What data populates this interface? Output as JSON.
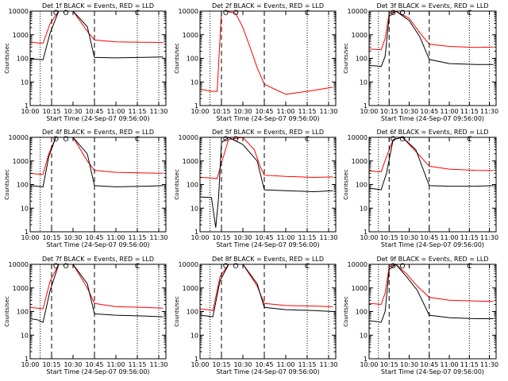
{
  "figure": {
    "background": "#ffffff",
    "axis_color": "#000000",
    "events_color": "#000000",
    "lld_color": "#ff0000"
  },
  "chart_data": [
    {
      "type": "line",
      "title": "Det 1f BLACK = Events, RED = LLD",
      "xlabel": "Start Time (24-Sep-07 09:56:00)",
      "ylabel": "Counts/sec",
      "xlim": [
        "10:00",
        "11:35"
      ],
      "ylim": [
        1,
        10000
      ],
      "yscale": "log",
      "x_ticks": [
        "10:00",
        "10:15",
        "10:30",
        "10:45",
        "11:00",
        "11:15",
        "11:30"
      ],
      "y_ticks": [
        "1",
        "10",
        "100",
        "1000",
        "10000"
      ],
      "dotted_vlines": [
        "10:07",
        "11:15",
        "11:30"
      ],
      "dashed_vlines": [
        "10:15",
        "10:45"
      ],
      "annotations": [
        "O",
        "O",
        "C"
      ],
      "series": [
        {
          "color": "#ff0000",
          "x": [
            "10:00",
            "10:06",
            "10:09",
            "10:14",
            "10:20",
            "10:30",
            "10:40",
            "10:45",
            "11:00",
            "11:20",
            "11:33"
          ],
          "values": [
            480,
            450,
            440,
            3000,
            10000,
            10000,
            1400,
            600,
            500,
            480,
            470
          ]
        },
        {
          "color": "#000000",
          "x": [
            "10:00",
            "10:06",
            "10:09",
            "10:14",
            "10:20",
            "10:30",
            "10:40",
            "10:45",
            "11:00",
            "11:20",
            "11:33"
          ],
          "values": [
            95,
            90,
            88,
            1200,
            10000,
            10000,
            2200,
            110,
            105,
            110,
            115
          ]
        }
      ]
    },
    {
      "type": "line",
      "title": "Det 2f BLACK = Events, RED = LLD",
      "xlabel": "Start Time (24-Sep-07 09:56:00)",
      "ylabel": "Counts/sec",
      "xlim": [
        "10:00",
        "11:35"
      ],
      "ylim": [
        1,
        10000
      ],
      "yscale": "log",
      "x_ticks": [
        "10:00",
        "10:15",
        "10:30",
        "10:45",
        "11:00",
        "11:15",
        "11:30"
      ],
      "y_ticks": [
        "1",
        "10",
        "100",
        "1000",
        "10000"
      ],
      "dotted_vlines": [
        "10:07",
        "11:15",
        "11:30"
      ],
      "dashed_vlines": [
        "10:15",
        "10:45"
      ],
      "annotations": [
        "O",
        "O",
        "C"
      ],
      "series": [
        {
          "color": "#ff0000",
          "x": [
            "10:00",
            "10:08",
            "10:12",
            "10:15",
            "10:18",
            "10:25",
            "10:30",
            "10:35",
            "10:40",
            "10:45",
            "11:00",
            "11:15",
            "11:33"
          ],
          "values": [
            5,
            4,
            4,
            10000,
            10000,
            8000,
            2000,
            300,
            40,
            8,
            3,
            4,
            6
          ]
        },
        {
          "color": "#000000",
          "x": [
            "10:00",
            "11:33"
          ],
          "values": [
            1,
            1
          ]
        }
      ]
    },
    {
      "type": "line",
      "title": "Det 3f BLACK = Events, RED = LLD",
      "xlabel": "Start Time (24-Sep-07 09:56:00)",
      "ylabel": "Counts/sec",
      "xlim": [
        "10:00",
        "11:35"
      ],
      "ylim": [
        1,
        10000
      ],
      "yscale": "log",
      "x_ticks": [
        "10:00",
        "10:15",
        "10:30",
        "10:45",
        "11:00",
        "11:15",
        "11:30"
      ],
      "y_ticks": [
        "1",
        "10",
        "100",
        "1000",
        "10000"
      ],
      "dotted_vlines": [
        "10:07",
        "11:15",
        "11:30"
      ],
      "dashed_vlines": [
        "10:15",
        "10:45"
      ],
      "annotations": [
        "O",
        "O",
        "C"
      ],
      "series": [
        {
          "color": "#ff0000",
          "x": [
            "10:00",
            "10:05",
            "10:09",
            "10:12",
            "10:15",
            "10:20",
            "10:30",
            "10:38",
            "10:45",
            "11:00",
            "11:20",
            "11:33"
          ],
          "values": [
            250,
            240,
            230,
            700,
            8000,
            10000,
            5000,
            1200,
            400,
            320,
            290,
            300
          ]
        },
        {
          "color": "#000000",
          "x": [
            "10:00",
            "10:05",
            "10:09",
            "10:12",
            "10:15",
            "10:20",
            "10:30",
            "10:38",
            "10:45",
            "11:00",
            "11:20",
            "11:33"
          ],
          "values": [
            50,
            48,
            45,
            120,
            6000,
            10000,
            4000,
            800,
            90,
            60,
            55,
            55
          ]
        }
      ]
    },
    {
      "type": "line",
      "title": "Det 4f BLACK = Events, RED = LLD",
      "xlabel": "Start Time (24-Sep-07 09:56:00)",
      "ylabel": "Counts/sec",
      "xlim": [
        "10:00",
        "11:35"
      ],
      "ylim": [
        1,
        10000
      ],
      "yscale": "log",
      "x_ticks": [
        "10:00",
        "10:15",
        "10:30",
        "10:45",
        "11:00",
        "11:15",
        "11:30"
      ],
      "y_ticks": [
        "1",
        "10",
        "100",
        "1000",
        "10000"
      ],
      "dotted_vlines": [
        "10:07",
        "11:15",
        "11:30"
      ],
      "dashed_vlines": [
        "10:15",
        "10:45"
      ],
      "annotations": [
        "O",
        "O",
        "C"
      ],
      "series": [
        {
          "color": "#ff0000",
          "x": [
            "10:00",
            "10:05",
            "10:09",
            "10:13",
            "10:18",
            "10:30",
            "10:40",
            "10:45",
            "11:00",
            "11:20",
            "11:33"
          ],
          "values": [
            300,
            280,
            270,
            2000,
            10000,
            10000,
            1000,
            400,
            330,
            310,
            300
          ]
        },
        {
          "color": "#000000",
          "x": [
            "10:00",
            "10:05",
            "10:09",
            "10:13",
            "10:18",
            "10:30",
            "10:40",
            "10:45",
            "11:00",
            "11:20",
            "11:33"
          ],
          "values": [
            90,
            85,
            80,
            1500,
            10000,
            10000,
            2000,
            90,
            80,
            85,
            90
          ]
        }
      ]
    },
    {
      "type": "line",
      "title": "Det 5f BLACK = Events, RED = LLD",
      "xlabel": "Start Time (24-Sep-07 09:56:00)",
      "ylabel": "Counts/sec",
      "xlim": [
        "10:00",
        "11:35"
      ],
      "ylim": [
        1,
        10000
      ],
      "yscale": "log",
      "x_ticks": [
        "10:00",
        "10:15",
        "10:30",
        "10:45",
        "11:00",
        "11:15",
        "11:30"
      ],
      "y_ticks": [
        "1",
        "10",
        "100",
        "1000",
        "10000"
      ],
      "dotted_vlines": [
        "10:07",
        "11:15",
        "11:30"
      ],
      "dashed_vlines": [
        "10:15",
        "10:45"
      ],
      "annotations": [
        "O",
        "O",
        "C"
      ],
      "series": [
        {
          "color": "#ff0000",
          "x": [
            "10:00",
            "10:08",
            "10:12",
            "10:15",
            "10:20",
            "10:30",
            "10:38",
            "10:42",
            "10:45",
            "11:00",
            "11:20",
            "11:33"
          ],
          "values": [
            200,
            190,
            180,
            800,
            8000,
            10000,
            3000,
            600,
            250,
            220,
            200,
            210
          ]
        },
        {
          "color": "#000000",
          "x": [
            "10:00",
            "10:08",
            "10:11",
            "10:13",
            "10:15",
            "10:20",
            "10:30",
            "10:40",
            "10:45",
            "11:00",
            "11:20",
            "11:33"
          ],
          "values": [
            30,
            28,
            1.5,
            28,
            6000,
            10000,
            5000,
            1000,
            60,
            55,
            50,
            55
          ]
        }
      ]
    },
    {
      "type": "line",
      "title": "Det 6f BLACK = Events, RED = LLD",
      "xlabel": "Start Time (24-Sep-07 09:56:00)",
      "ylabel": "Counts/sec",
      "xlim": [
        "10:00",
        "11:35"
      ],
      "ylim": [
        1,
        10000
      ],
      "yscale": "log",
      "x_ticks": [
        "10:00",
        "10:15",
        "10:30",
        "10:45",
        "11:00",
        "11:15",
        "11:30"
      ],
      "y_ticks": [
        "1",
        "10",
        "100",
        "1000",
        "10000"
      ],
      "dotted_vlines": [
        "10:07",
        "11:15",
        "11:30"
      ],
      "dashed_vlines": [
        "10:15",
        "10:45"
      ],
      "annotations": [
        "O",
        "O",
        "C"
      ],
      "series": [
        {
          "color": "#ff0000",
          "x": [
            "10:00",
            "10:05",
            "10:09",
            "10:13",
            "10:18",
            "10:25",
            "10:35",
            "10:45",
            "11:00",
            "11:20",
            "11:33"
          ],
          "values": [
            380,
            360,
            350,
            1500,
            8000,
            10000,
            2500,
            600,
            450,
            400,
            390
          ]
        },
        {
          "color": "#000000",
          "x": [
            "10:00",
            "10:05",
            "10:09",
            "10:13",
            "10:18",
            "10:25",
            "10:35",
            "10:45",
            "11:00",
            "11:20",
            "11:33"
          ],
          "values": [
            70,
            65,
            60,
            300,
            8000,
            10000,
            3000,
            90,
            85,
            85,
            90
          ]
        }
      ]
    },
    {
      "type": "line",
      "title": "Det 7f BLACK = Events, RED = LLD",
      "xlabel": "Start Time (24-Sep-07 09:56:00)",
      "ylabel": "Counts/sec",
      "xlim": [
        "10:00",
        "11:35"
      ],
      "ylim": [
        1,
        10000
      ],
      "yscale": "log",
      "x_ticks": [
        "10:00",
        "10:15",
        "10:30",
        "10:45",
        "11:00",
        "11:15",
        "11:30"
      ],
      "y_ticks": [
        "1",
        "10",
        "100",
        "1000",
        "10000"
      ],
      "dotted_vlines": [
        "10:07",
        "11:15",
        "11:30"
      ],
      "dashed_vlines": [
        "10:15",
        "10:45"
      ],
      "annotations": [
        "O",
        "O",
        "C"
      ],
      "series": [
        {
          "color": "#ff0000",
          "x": [
            "10:00",
            "10:05",
            "10:09",
            "10:14",
            "10:20",
            "10:30",
            "10:40",
            "10:45",
            "11:00",
            "11:20",
            "11:33"
          ],
          "values": [
            150,
            140,
            130,
            2000,
            10000,
            10000,
            1000,
            220,
            160,
            150,
            140
          ]
        },
        {
          "color": "#000000",
          "x": [
            "10:00",
            "10:05",
            "10:09",
            "10:14",
            "10:20",
            "10:30",
            "10:40",
            "10:45",
            "11:00",
            "11:20",
            "11:33"
          ],
          "values": [
            50,
            45,
            35,
            800,
            10000,
            10000,
            1500,
            80,
            70,
            65,
            60
          ]
        }
      ]
    },
    {
      "type": "line",
      "title": "Det 8f BLACK = Events, RED = LLD",
      "xlabel": "Start Time (24-Sep-07 09:56:00)",
      "ylabel": "Counts/sec",
      "xlim": [
        "10:00",
        "11:35"
      ],
      "ylim": [
        1,
        10000
      ],
      "yscale": "log",
      "x_ticks": [
        "10:00",
        "10:15",
        "10:30",
        "10:45",
        "11:00",
        "11:15",
        "11:30"
      ],
      "y_ticks": [
        "1",
        "10",
        "100",
        "1000",
        "10000"
      ],
      "dotted_vlines": [
        "10:07",
        "11:15",
        "11:30"
      ],
      "dashed_vlines": [
        "10:15",
        "10:45"
      ],
      "annotations": [
        "O",
        "O",
        "C"
      ],
      "series": [
        {
          "color": "#ff0000",
          "x": [
            "10:00",
            "10:05",
            "10:09",
            "10:14",
            "10:20",
            "10:30",
            "10:40",
            "10:45",
            "11:00",
            "11:20",
            "11:33"
          ],
          "values": [
            130,
            120,
            110,
            3000,
            10000,
            10000,
            1200,
            220,
            180,
            170,
            160
          ]
        },
        {
          "color": "#000000",
          "x": [
            "10:00",
            "10:05",
            "10:09",
            "10:14",
            "10:20",
            "10:30",
            "10:40",
            "10:45",
            "11:00",
            "11:20",
            "11:33"
          ],
          "values": [
            70,
            65,
            60,
            2000,
            10000,
            10000,
            1500,
            150,
            120,
            110,
            100
          ]
        }
      ]
    },
    {
      "type": "line",
      "title": "Det 9f BLACK = Events, RED = LLD",
      "xlabel": "Start Time (24-Sep-07 09:56:00)",
      "ylabel": "Counts/sec",
      "xlim": [
        "10:00",
        "11:35"
      ],
      "ylim": [
        1,
        10000
      ],
      "yscale": "log",
      "x_ticks": [
        "10:00",
        "10:15",
        "10:30",
        "10:45",
        "11:00",
        "11:15",
        "11:30"
      ],
      "y_ticks": [
        "1",
        "10",
        "100",
        "1000",
        "10000"
      ],
      "dotted_vlines": [
        "10:07",
        "11:15",
        "11:30"
      ],
      "dashed_vlines": [
        "10:15",
        "10:45"
      ],
      "annotations": [
        "O",
        "O",
        "C"
      ],
      "series": [
        {
          "color": "#ff0000",
          "x": [
            "10:00",
            "10:05",
            "10:09",
            "10:12",
            "10:15",
            "10:20",
            "10:28",
            "10:36",
            "10:45",
            "11:00",
            "11:20",
            "11:33"
          ],
          "values": [
            220,
            210,
            200,
            600,
            8000,
            10000,
            4000,
            1200,
            400,
            300,
            280,
            270
          ]
        },
        {
          "color": "#000000",
          "x": [
            "10:00",
            "10:05",
            "10:09",
            "10:12",
            "10:15",
            "10:20",
            "10:28",
            "10:36",
            "10:45",
            "11:00",
            "11:20",
            "11:33"
          ],
          "values": [
            40,
            38,
            35,
            100,
            6000,
            10000,
            3000,
            800,
            70,
            55,
            50,
            50
          ]
        }
      ]
    }
  ]
}
